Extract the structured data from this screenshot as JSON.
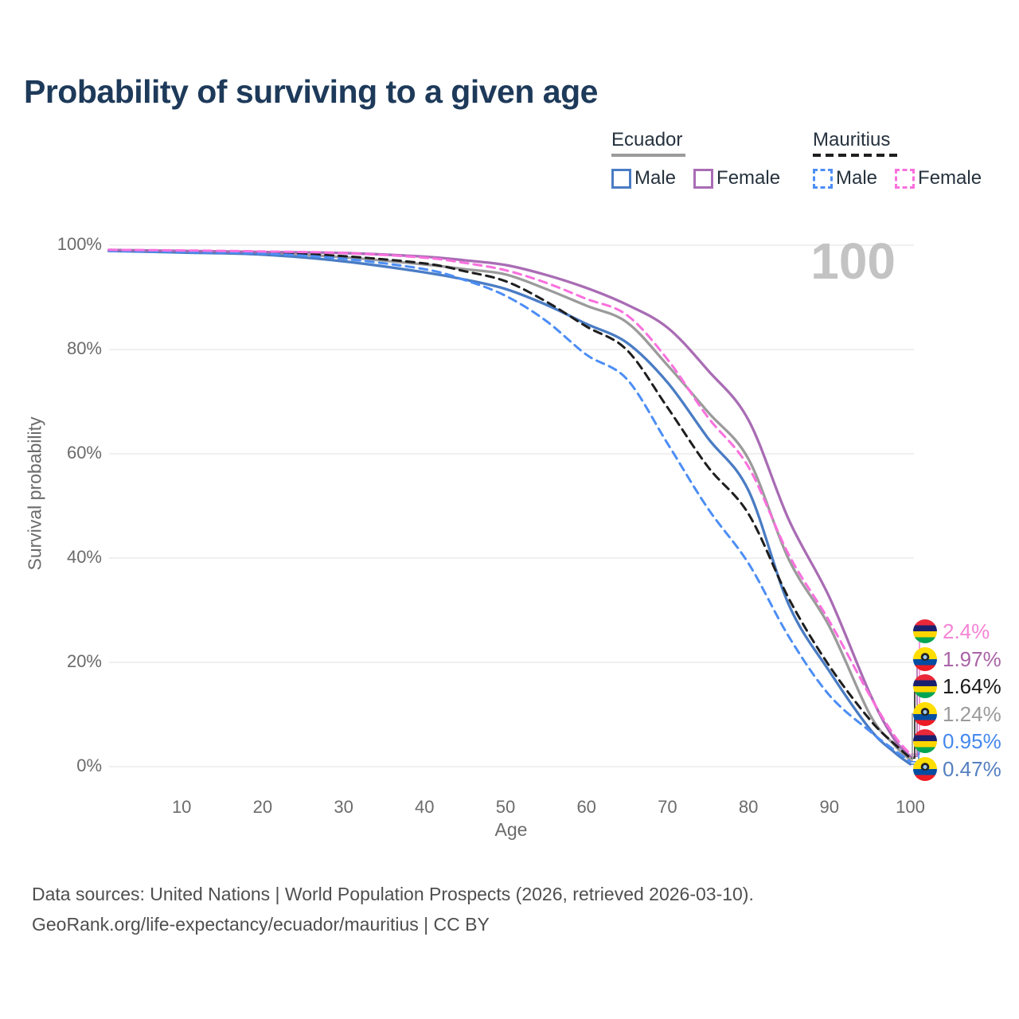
{
  "title": "Probability of surviving to a given age",
  "legend": {
    "ecuador": {
      "title": "Ecuador",
      "male_label": "Male",
      "female_label": "Female"
    },
    "mauritius": {
      "title": "Mauritius",
      "male_label": "Male",
      "female_label": "Female"
    }
  },
  "chart_data": {
    "type": "line",
    "title": "Probability of surviving to a given age",
    "xlabel": "Age",
    "ylabel": "Survival probability",
    "watermark": "100",
    "xlim": [
      1,
      100
    ],
    "ylim": [
      0,
      100
    ],
    "grid": "horizontal",
    "grid_color": "#ebebeb",
    "x_ticks": [
      10,
      20,
      30,
      40,
      50,
      60,
      70,
      80,
      90,
      100
    ],
    "y_ticks": [
      {
        "value": 100,
        "label": "100%"
      },
      {
        "value": 80,
        "label": "80%"
      },
      {
        "value": 60,
        "label": "60%"
      },
      {
        "value": 40,
        "label": "40%"
      },
      {
        "value": 20,
        "label": "20%"
      },
      {
        "value": 0,
        "label": "0%"
      }
    ],
    "x": [
      1,
      10,
      20,
      30,
      40,
      45,
      50,
      55,
      60,
      65,
      70,
      75,
      80,
      85,
      90,
      95,
      98,
      100
    ],
    "series": [
      {
        "name": "Ecuador Total",
        "country": "Ecuador",
        "sex": "Both",
        "line": "solid",
        "color": "#9b9b9b",
        "values": [
          99.0,
          98.8,
          98.5,
          97.7,
          96.3,
          95.4,
          94.4,
          91.6,
          88.4,
          85.2,
          77.0,
          68.0,
          59.0,
          39.7,
          26.9,
          10.0,
          4.2,
          1.24
        ]
      },
      {
        "name": "Ecuador Male",
        "country": "Ecuador",
        "sex": "Male",
        "line": "solid",
        "color": "#4a7cc4",
        "values": [
          98.9,
          98.6,
          98.2,
          96.9,
          94.8,
          93.4,
          91.6,
          88.6,
          84.9,
          81.3,
          73.7,
          63.0,
          53.0,
          31.0,
          18.3,
          7.2,
          2.8,
          0.47
        ]
      },
      {
        "name": "Ecuador Female",
        "country": "Ecuador",
        "sex": "Female",
        "line": "solid",
        "color": "#a96cb4",
        "values": [
          99.1,
          98.9,
          98.7,
          98.5,
          97.8,
          97.1,
          96.2,
          94.3,
          91.8,
          88.6,
          84.2,
          76.0,
          66.5,
          47.3,
          32.5,
          14.0,
          5.3,
          1.97
        ]
      },
      {
        "name": "Mauritius Total",
        "country": "Mauritius",
        "sex": "Both",
        "line": "dashed",
        "color": "#1e1e1e",
        "values": [
          99.0,
          98.8,
          98.6,
          97.9,
          96.5,
          95.0,
          93.1,
          89.2,
          84.4,
          79.9,
          68.9,
          57.5,
          48.5,
          32.2,
          19.3,
          9.0,
          4.4,
          1.64
        ]
      },
      {
        "name": "Mauritius Male",
        "country": "Mauritius",
        "sex": "Male",
        "line": "dashed",
        "color": "#4d8ef5",
        "values": [
          98.9,
          98.7,
          98.4,
          97.4,
          95.4,
          93.3,
          90.3,
          85.5,
          79.0,
          74.3,
          62.0,
          49.5,
          39.0,
          24.9,
          13.7,
          6.8,
          3.2,
          0.95
        ]
      },
      {
        "name": "Mauritius Female",
        "country": "Mauritius",
        "sex": "Female",
        "line": "dashed",
        "color": "#f970dd",
        "values": [
          99.1,
          99.0,
          98.8,
          98.5,
          97.6,
          96.6,
          95.2,
          92.8,
          89.7,
          86.6,
          78.1,
          67.0,
          57.5,
          40.6,
          27.9,
          13.6,
          6.0,
          2.4
        ]
      }
    ],
    "end_labels": [
      {
        "flag": "mauritius",
        "label": "2.4%",
        "color": "#f584d6",
        "series": "Mauritius Female"
      },
      {
        "flag": "ecuador",
        "label": "1.97%",
        "color": "#a963a6",
        "series": "Ecuador Female"
      },
      {
        "flag": "mauritius",
        "label": "1.64%",
        "color": "#1b1b1b",
        "series": "Mauritius Total"
      },
      {
        "flag": "ecuador",
        "label": "1.24%",
        "color": "#9b9b9b",
        "series": "Ecuador Total"
      },
      {
        "flag": "mauritius",
        "label": "0.95%",
        "color": "#4488ee",
        "series": "Mauritius Male"
      },
      {
        "flag": "ecuador",
        "label": "0.47%",
        "color": "#557fc0",
        "series": "Ecuador Male"
      }
    ]
  },
  "footer": {
    "line1": "Data sources: United Nations | World Population Prospects (2026, retrieved 2026-03-10).",
    "line2": "GeoRank.org/life-expectancy/ecuador/mauritius | CC BY"
  }
}
